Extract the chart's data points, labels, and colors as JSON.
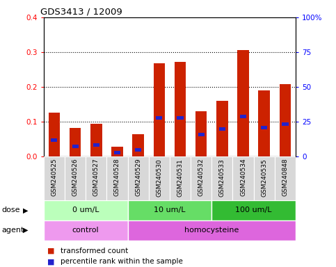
{
  "title": "GDS3413 / 12009",
  "samples": [
    "GSM240525",
    "GSM240526",
    "GSM240527",
    "GSM240528",
    "GSM240529",
    "GSM240530",
    "GSM240531",
    "GSM240532",
    "GSM240533",
    "GSM240534",
    "GSM240535",
    "GSM240848"
  ],
  "red_values": [
    0.125,
    0.082,
    0.093,
    0.028,
    0.063,
    0.267,
    0.272,
    0.13,
    0.16,
    0.305,
    0.19,
    0.208
  ],
  "blue_values": [
    0.047,
    0.028,
    0.032,
    0.01,
    0.018,
    0.11,
    0.11,
    0.063,
    0.078,
    0.115,
    0.083,
    0.093
  ],
  "ylim_left": [
    0,
    0.4
  ],
  "ylim_right": [
    0,
    100
  ],
  "yticks_left": [
    0,
    0.1,
    0.2,
    0.3,
    0.4
  ],
  "ytick_labels_right": [
    "0",
    "25",
    "50",
    "75",
    "100%"
  ],
  "dose_groups": [
    {
      "label": "0 um/L",
      "start": 0,
      "end": 4,
      "color": "#bbffbb"
    },
    {
      "label": "10 um/L",
      "start": 4,
      "end": 8,
      "color": "#66dd66"
    },
    {
      "label": "100 um/L",
      "start": 8,
      "end": 12,
      "color": "#33bb33"
    }
  ],
  "agent_groups": [
    {
      "label": "control",
      "start": 0,
      "end": 4,
      "color": "#ee99ee"
    },
    {
      "label": "homocysteine",
      "start": 4,
      "end": 12,
      "color": "#dd66dd"
    }
  ],
  "dose_label": "dose",
  "agent_label": "agent",
  "bar_color": "#cc2200",
  "blue_color": "#2222cc",
  "legend_items": [
    "transformed count",
    "percentile rank within the sample"
  ],
  "bar_width": 0.55,
  "bg_color": "#d8d8d8",
  "white": "#ffffff"
}
